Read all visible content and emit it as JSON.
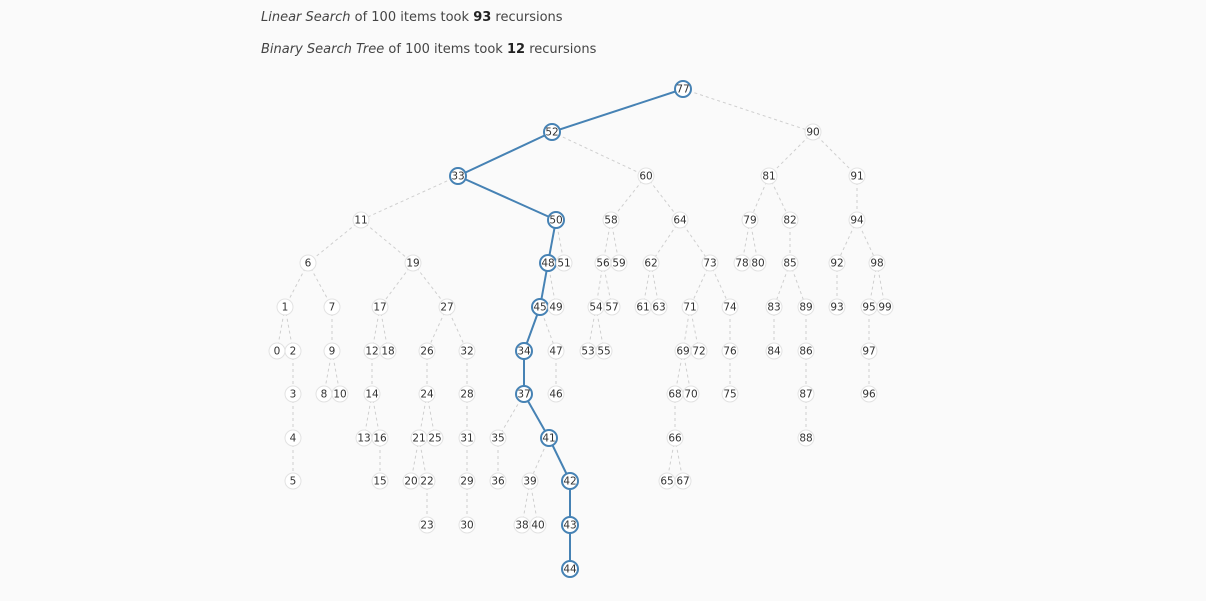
{
  "stats": {
    "linear": {
      "label": "Linear Search",
      "middle": "of 100 items took",
      "count": "93",
      "suffix": "recursions"
    },
    "bst": {
      "label": "Binary Search Tree",
      "middle": "of 100 items took",
      "count": "12",
      "suffix": "recursions"
    }
  },
  "tree": {
    "search_path": [
      77,
      52,
      33,
      50,
      48,
      45,
      34,
      37,
      41,
      42,
      43,
      44
    ],
    "colors": {
      "path": "#4682b4",
      "edge": "#cfcfcf",
      "node_border": "#e2e2e2"
    },
    "edges": [
      [
        77,
        52
      ],
      [
        77,
        90
      ],
      [
        52,
        33
      ],
      [
        52,
        60
      ],
      [
        90,
        81
      ],
      [
        90,
        91
      ],
      [
        33,
        11
      ],
      [
        33,
        50
      ],
      [
        60,
        58
      ],
      [
        60,
        64
      ],
      [
        81,
        79
      ],
      [
        81,
        82
      ],
      [
        91,
        94
      ],
      [
        11,
        6
      ],
      [
        11,
        19
      ],
      [
        50,
        48
      ],
      [
        50,
        51
      ],
      [
        58,
        56
      ],
      [
        58,
        59
      ],
      [
        64,
        62
      ],
      [
        64,
        73
      ],
      [
        79,
        78
      ],
      [
        79,
        80
      ],
      [
        82,
        85
      ],
      [
        94,
        92
      ],
      [
        94,
        98
      ],
      [
        6,
        1
      ],
      [
        6,
        7
      ],
      [
        19,
        17
      ],
      [
        19,
        27
      ],
      [
        48,
        45
      ],
      [
        48,
        49
      ],
      [
        56,
        54
      ],
      [
        56,
        57
      ],
      [
        62,
        61
      ],
      [
        62,
        63
      ],
      [
        73,
        71
      ],
      [
        73,
        74
      ],
      [
        85,
        83
      ],
      [
        85,
        89
      ],
      [
        92,
        93
      ],
      [
        98,
        95
      ],
      [
        98,
        99
      ],
      [
        1,
        0
      ],
      [
        1,
        2
      ],
      [
        7,
        9
      ],
      [
        17,
        12
      ],
      [
        17,
        18
      ],
      [
        27,
        26
      ],
      [
        27,
        32
      ],
      [
        45,
        34
      ],
      [
        45,
        47
      ],
      [
        54,
        53
      ],
      [
        54,
        55
      ],
      [
        71,
        69
      ],
      [
        71,
        72
      ],
      [
        74,
        76
      ],
      [
        83,
        84
      ],
      [
        89,
        86
      ],
      [
        95,
        97
      ],
      [
        2,
        3
      ],
      [
        9,
        8
      ],
      [
        9,
        10
      ],
      [
        12,
        14
      ],
      [
        26,
        24
      ],
      [
        32,
        28
      ],
      [
        34,
        37
      ],
      [
        47,
        46
      ],
      [
        69,
        68
      ],
      [
        69,
        70
      ],
      [
        76,
        75
      ],
      [
        86,
        87
      ],
      [
        97,
        96
      ],
      [
        3,
        4
      ],
      [
        14,
        13
      ],
      [
        14,
        16
      ],
      [
        24,
        21
      ],
      [
        24,
        25
      ],
      [
        28,
        31
      ],
      [
        37,
        35
      ],
      [
        37,
        41
      ],
      [
        68,
        66
      ],
      [
        87,
        88
      ],
      [
        4,
        5
      ],
      [
        16,
        15
      ],
      [
        21,
        20
      ],
      [
        21,
        22
      ],
      [
        31,
        29
      ],
      [
        35,
        36
      ],
      [
        41,
        39
      ],
      [
        41,
        42
      ],
      [
        66,
        65
      ],
      [
        66,
        67
      ],
      [
        22,
        23
      ],
      [
        29,
        30
      ],
      [
        39,
        38
      ],
      [
        39,
        40
      ],
      [
        42,
        43
      ],
      [
        43,
        44
      ]
    ]
  }
}
